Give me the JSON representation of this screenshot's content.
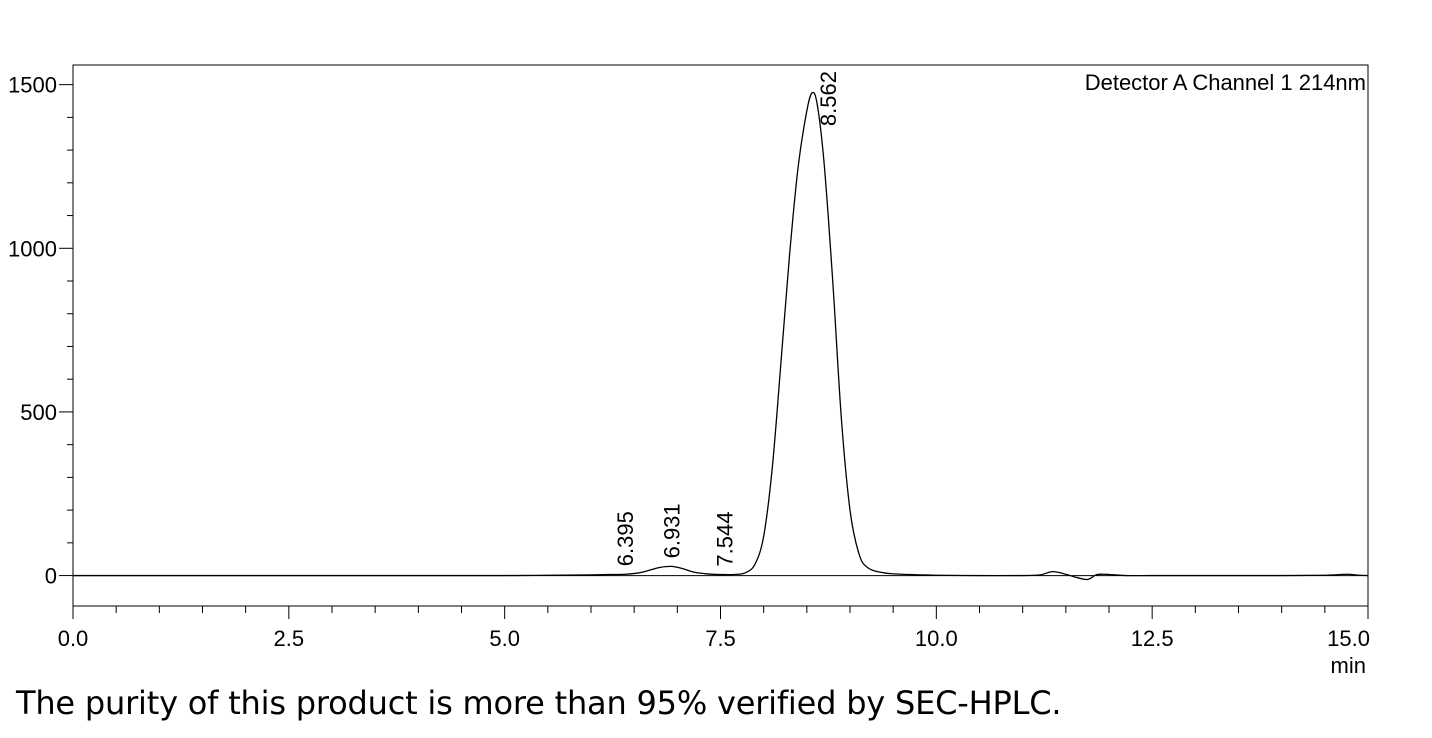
{
  "chart_data": {
    "type": "line",
    "title": "",
    "legend_text": "Detector A Channel 1 214nm",
    "legend_placement": "top-right",
    "xlabel": "min",
    "ylabel": "",
    "xlim": [
      0.0,
      15.0
    ],
    "ylim": [
      -93,
      1560
    ],
    "grid": false,
    "x_ticks": [
      0.0,
      2.5,
      5.0,
      7.5,
      10.0,
      12.5,
      15.0
    ],
    "x_tick_labels": [
      "0.0",
      "2.5",
      "5.0",
      "7.5",
      "10.0",
      "12.5",
      "15.0"
    ],
    "y_ticks": [
      0,
      500,
      1000,
      1500
    ],
    "y_tick_labels": [
      "0",
      "500",
      "1000",
      "1500"
    ],
    "peak_labels": [
      {
        "x": 6.395,
        "label": "6.395"
      },
      {
        "x": 6.931,
        "label": "6.931"
      },
      {
        "x": 7.544,
        "label": "7.544"
      },
      {
        "x": 8.562,
        "label": "8.562"
      }
    ],
    "series": [
      {
        "x": [
          0.0,
          0.5,
          1.0,
          2.0,
          3.0,
          4.0,
          5.0,
          5.5,
          6.0,
          6.2,
          6.395,
          6.55,
          6.7,
          6.8,
          6.931,
          7.05,
          7.2,
          7.35,
          7.544,
          7.7,
          7.8,
          7.9,
          8.0,
          8.1,
          8.2,
          8.3,
          8.4,
          8.5,
          8.562,
          8.62,
          8.7,
          8.8,
          8.9,
          9.0,
          9.1,
          9.2,
          9.4,
          9.7,
          10.0,
          10.5,
          11.0,
          11.2,
          11.35,
          11.5,
          11.6,
          11.75,
          11.85,
          11.95,
          12.2,
          12.5,
          13.0,
          14.0,
          14.5,
          14.75,
          14.9,
          15.0
        ],
        "y": [
          0,
          0,
          0,
          0,
          0,
          0,
          0,
          1,
          2,
          3,
          4,
          8,
          18,
          25,
          28,
          22,
          10,
          5,
          3,
          4,
          10,
          35,
          120,
          330,
          650,
          980,
          1250,
          1420,
          1475,
          1440,
          1260,
          900,
          480,
          200,
          70,
          25,
          8,
          3,
          1,
          0,
          0,
          2,
          12,
          4,
          -4,
          -12,
          2,
          4,
          0,
          0,
          0,
          0,
          1,
          4,
          1,
          0
        ]
      }
    ]
  },
  "caption": "The purity of this product is more than 95% verified by SEC-HPLC."
}
